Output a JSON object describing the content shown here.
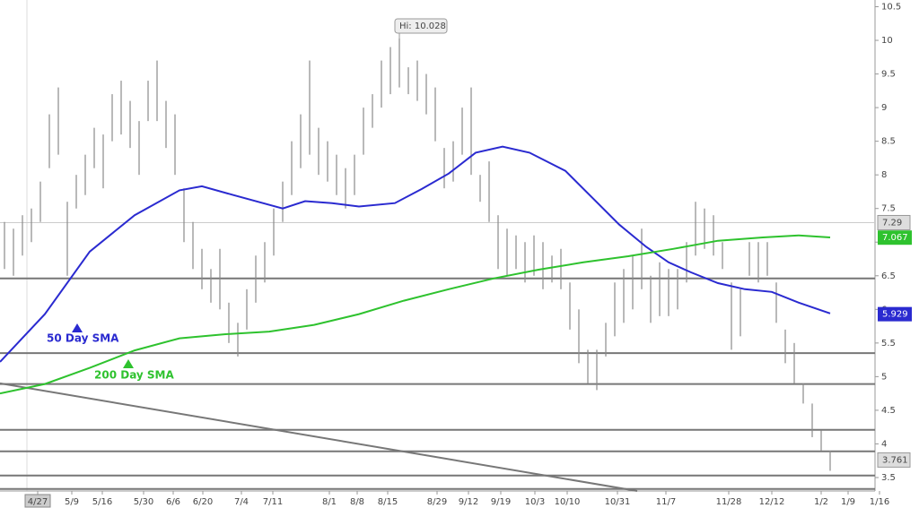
{
  "chart_data": {
    "type": "ohlc",
    "ylim": [
      3.3,
      10.6
    ],
    "yticks": [
      3.5,
      4,
      4.5,
      5,
      5.5,
      6,
      6.5,
      7,
      7.5,
      8,
      8.5,
      9,
      9.5,
      10,
      10.5
    ],
    "xlim": [
      -0.5,
      97.5
    ],
    "xticks": [
      {
        "value": 3.7,
        "label": "4/27"
      },
      {
        "value": 7.5,
        "label": "5/9"
      },
      {
        "value": 10.9,
        "label": "5/16"
      },
      {
        "value": 15.5,
        "label": "5/30"
      },
      {
        "value": 18.8,
        "label": "6/6"
      },
      {
        "value": 22.1,
        "label": "6/20"
      },
      {
        "value": 26.4,
        "label": "7/4"
      },
      {
        "value": 29.9,
        "label": "7/11"
      },
      {
        "value": 36.2,
        "label": "8/1"
      },
      {
        "value": 39.3,
        "label": "8/8"
      },
      {
        "value": 42.7,
        "label": "8/15"
      },
      {
        "value": 48.2,
        "label": "8/29"
      },
      {
        "value": 51.7,
        "label": "9/12"
      },
      {
        "value": 55.3,
        "label": "9/19"
      },
      {
        "value": 59.1,
        "label": "10/3"
      },
      {
        "value": 62.7,
        "label": "10/10"
      },
      {
        "value": 68.3,
        "label": "10/31"
      },
      {
        "value": 73.7,
        "label": "11/7"
      },
      {
        "value": 80.7,
        "label": "11/28"
      },
      {
        "value": 85.5,
        "label": "12/12"
      },
      {
        "value": 91,
        "label": "1/2"
      },
      {
        "value": 94,
        "label": "1/9"
      },
      {
        "value": 97.5,
        "label": "1/16"
      }
    ],
    "bar_color": "#8a8a8a",
    "bars": [
      [
        7.3,
        6.6
      ],
      [
        7.2,
        6.5
      ],
      [
        7.4,
        6.8
      ],
      [
        7.5,
        7.0
      ],
      [
        7.9,
        7.3
      ],
      [
        8.9,
        8.1
      ],
      [
        9.3,
        8.3
      ],
      [
        7.6,
        6.5
      ],
      [
        8.0,
        7.5
      ],
      [
        8.3,
        7.7
      ],
      [
        8.7,
        8.1
      ],
      [
        8.6,
        7.8
      ],
      [
        9.2,
        8.5
      ],
      [
        9.4,
        8.6
      ],
      [
        9.1,
        8.4
      ],
      [
        8.8,
        8.0
      ],
      [
        9.4,
        8.8
      ],
      [
        9.7,
        8.8
      ],
      [
        9.1,
        8.4
      ],
      [
        8.9,
        8.0
      ],
      [
        7.8,
        7.0
      ],
      [
        7.3,
        6.6
      ],
      [
        6.9,
        6.3
      ],
      [
        6.6,
        6.1
      ],
      [
        6.9,
        6.0
      ],
      [
        6.1,
        5.5
      ],
      [
        5.8,
        5.3
      ],
      [
        6.3,
        5.7
      ],
      [
        6.8,
        6.1
      ],
      [
        7.0,
        6.4
      ],
      [
        7.5,
        6.8
      ],
      [
        7.9,
        7.3
      ],
      [
        8.5,
        7.7
      ],
      [
        8.9,
        8.1
      ],
      [
        9.7,
        8.3
      ],
      [
        8.7,
        8.0
      ],
      [
        8.5,
        7.9
      ],
      [
        8.3,
        7.7
      ],
      [
        8.1,
        7.5
      ],
      [
        8.3,
        7.7
      ],
      [
        9.0,
        8.3
      ],
      [
        9.2,
        8.7
      ],
      [
        9.7,
        9.0
      ],
      [
        9.9,
        9.2
      ],
      [
        10.028,
        9.3
      ],
      [
        9.6,
        9.2
      ],
      [
        9.7,
        9.1
      ],
      [
        9.5,
        8.9
      ],
      [
        9.3,
        8.5
      ],
      [
        8.4,
        7.8
      ],
      [
        8.5,
        7.9
      ],
      [
        9.0,
        8.3
      ],
      [
        9.3,
        8.0
      ],
      [
        8.0,
        7.6
      ],
      [
        8.2,
        7.3
      ],
      [
        7.4,
        6.6
      ],
      [
        7.2,
        6.5
      ],
      [
        7.1,
        6.6
      ],
      [
        7.0,
        6.4
      ],
      [
        7.1,
        6.5
      ],
      [
        7.0,
        6.3
      ],
      [
        6.8,
        6.4
      ],
      [
        6.9,
        6.3
      ],
      [
        6.4,
        5.7
      ],
      [
        6.0,
        5.2
      ],
      [
        5.4,
        4.9
      ],
      [
        5.4,
        4.8
      ],
      [
        5.8,
        5.3
      ],
      [
        6.4,
        5.6
      ],
      [
        6.6,
        5.8
      ],
      [
        6.8,
        6.0
      ],
      [
        7.2,
        6.3
      ],
      [
        6.5,
        5.8
      ],
      [
        6.7,
        5.9
      ],
      [
        6.6,
        5.9
      ],
      [
        6.6,
        6.0
      ],
      [
        7.0,
        6.4
      ],
      [
        7.6,
        6.8
      ],
      [
        7.5,
        6.9
      ],
      [
        7.4,
        6.8
      ],
      [
        7.0,
        6.6
      ],
      [
        6.4,
        5.4
      ],
      [
        6.3,
        5.6
      ],
      [
        7.0,
        6.5
      ],
      [
        7.0,
        6.4
      ],
      [
        7.0,
        6.5
      ],
      [
        6.4,
        5.8
      ],
      [
        5.7,
        5.2
      ],
      [
        5.5,
        4.9
      ],
      [
        4.9,
        4.6
      ],
      [
        4.6,
        4.1
      ],
      [
        4.2,
        3.9
      ],
      [
        3.9,
        3.6
      ]
    ],
    "series": [
      {
        "name": "50 Day SMA",
        "color": "#2a2ad0",
        "x": [
          -0.5,
          4.5,
          9.5,
          14.5,
          19.5,
          22,
          25.5,
          31,
          33.5,
          36.5,
          39.5,
          43.5,
          46.5,
          49.5,
          52.5,
          55.5,
          58.5,
          62.5,
          65.5,
          68.5,
          71.5,
          74,
          76.5,
          79.5,
          82.5,
          85.5,
          88.5,
          92
        ],
        "values": [
          5.22,
          5.93,
          6.86,
          7.4,
          7.77,
          7.83,
          7.7,
          7.5,
          7.61,
          7.58,
          7.53,
          7.58,
          7.79,
          8.02,
          8.33,
          8.42,
          8.33,
          8.06,
          7.66,
          7.26,
          6.93,
          6.7,
          6.55,
          6.39,
          6.3,
          6.26,
          6.1,
          5.94
        ],
        "last": 5.929
      },
      {
        "name": "200 Day SMA",
        "color": "#2ec22e",
        "x": [
          -0.5,
          4.5,
          9.5,
          14.5,
          19.5,
          24.5,
          29.5,
          34.5,
          39.5,
          44.5,
          49.5,
          54.5,
          59.5,
          64.5,
          69.5,
          74.5,
          79.5,
          84.5,
          88.5,
          92
        ],
        "values": [
          4.75,
          4.89,
          5.13,
          5.39,
          5.57,
          5.63,
          5.67,
          5.77,
          5.93,
          6.13,
          6.3,
          6.46,
          6.59,
          6.7,
          6.79,
          6.9,
          7.02,
          7.07,
          7.1,
          7.07
        ],
        "last": 7.067
      }
    ],
    "levels": [
      6.46,
      5.35,
      4.89,
      4.21,
      3.89,
      3.53,
      3.33
    ],
    "trendline": {
      "x": [
        -0.5,
        70.5
      ],
      "values": [
        4.9,
        3.3
      ]
    },
    "price_line": 7.29,
    "last_price": 3.761,
    "annotations": {
      "high": "Hi: 10.028",
      "high_x": 44,
      "high_value": 10.028
    }
  }
}
